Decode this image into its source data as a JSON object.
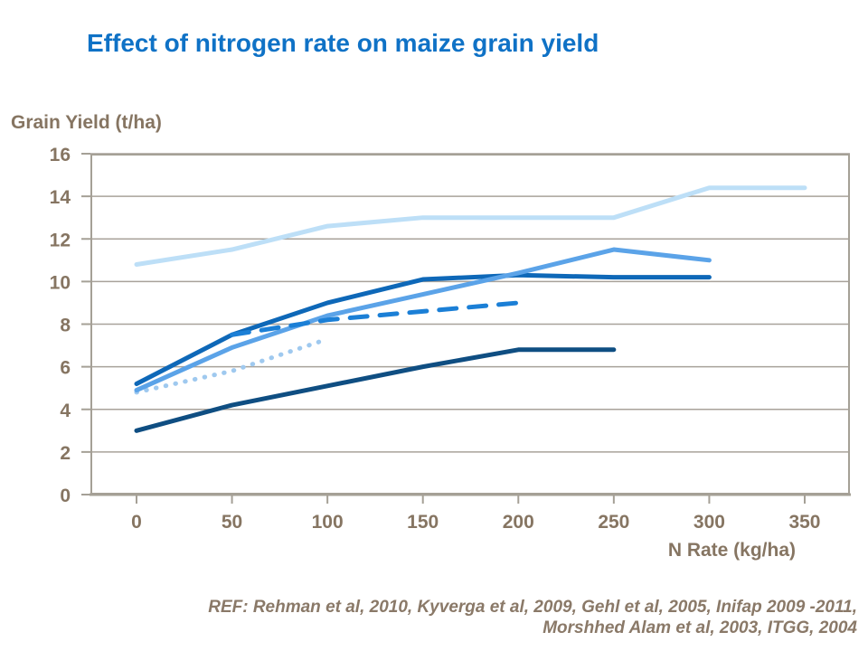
{
  "header": {
    "title": "Effect of nitrogen rate on maize grain yield"
  },
  "colors": {
    "title_text": "#0F72C6",
    "axis_text": "#867562",
    "grid_line": "#A8A29A",
    "axis_line": "#A5A096",
    "footnote_text": "#8A7968"
  },
  "footnote": {
    "line1": "REF: Rehman et al, 2010, Kyverga et al, 2009, Gehl et al, 2005, Inifap 2009 -2011,",
    "line2": "Morshhed Alam et al, 2003, ITGG, 2004"
  },
  "chart_data": {
    "type": "line",
    "title": "Effect of nitrogen rate on maize grain yield",
    "xlabel": "N Rate (kg/ha)",
    "ylabel": "Grain Yield (t/ha)",
    "xlim": [
      0,
      350
    ],
    "ylim": [
      0,
      16
    ],
    "x_ticks": [
      0,
      50,
      100,
      150,
      200,
      250,
      300,
      350
    ],
    "y_ticks": [
      0,
      2,
      4,
      6,
      8,
      10,
      12,
      14,
      16
    ],
    "grid": "horizontal-only",
    "legend": "none",
    "series": [
      {
        "name": "palest-blue",
        "style": "solid",
        "color": "#BDDFF7",
        "width": 5,
        "x": [
          0,
          50,
          100,
          150,
          200,
          250,
          300,
          350
        ],
        "y": [
          10.8,
          11.5,
          12.6,
          13.0,
          13.0,
          13.0,
          14.4,
          14.4
        ]
      },
      {
        "name": "dotted-light-blue",
        "style": "dotted",
        "color": "#9FC9EF",
        "width": 5,
        "x": [
          0,
          50,
          100
        ],
        "y": [
          4.8,
          5.8,
          7.3
        ]
      },
      {
        "name": "navy",
        "style": "solid",
        "color": "#0F4E82",
        "width": 5,
        "x": [
          0,
          50,
          100,
          150,
          200,
          250
        ],
        "y": [
          3.0,
          4.2,
          5.1,
          6.0,
          6.8,
          6.8
        ]
      },
      {
        "name": "dark-blue",
        "style": "solid",
        "color": "#0E68B8",
        "width": 5,
        "x": [
          0,
          50,
          100,
          150,
          200,
          250,
          300
        ],
        "y": [
          5.2,
          7.5,
          9.0,
          10.1,
          10.3,
          10.2,
          10.2
        ]
      },
      {
        "name": "medium-blue",
        "style": "solid",
        "color": "#5BA3E8",
        "width": 5,
        "x": [
          0,
          50,
          100,
          150,
          200,
          250,
          300
        ],
        "y": [
          4.9,
          6.9,
          8.4,
          9.4,
          10.4,
          11.5,
          11.0
        ]
      },
      {
        "name": "dashed-blue",
        "style": "dashed",
        "color": "#1B7FD6",
        "width": 5,
        "x": [
          50,
          100,
          150,
          200
        ],
        "y": [
          7.5,
          8.2,
          8.6,
          9.0
        ]
      }
    ]
  }
}
